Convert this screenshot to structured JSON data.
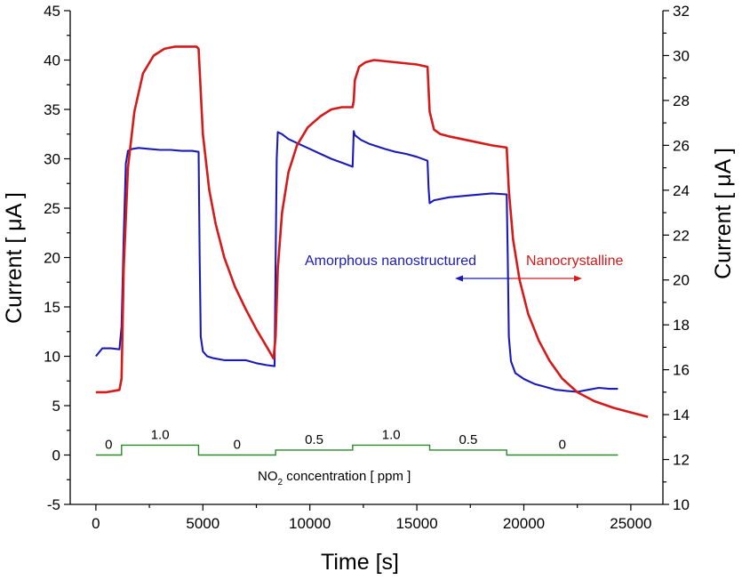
{
  "chart_data": {
    "type": "line",
    "xlabel": "Time  [s]",
    "ylabel_left": "Current  [ μA ]",
    "ylabel_right": "Current  [ μA ]",
    "xlim": [
      -1200,
      26500
    ],
    "ylim_left": [
      -5,
      45
    ],
    "ylim_right": [
      10,
      32
    ],
    "x_ticks": [
      0,
      5000,
      10000,
      15000,
      20000,
      25000
    ],
    "y_left_ticks": [
      -5,
      0,
      5,
      10,
      15,
      20,
      25,
      30,
      35,
      40,
      45
    ],
    "y_right_ticks": [
      10,
      12,
      14,
      16,
      18,
      20,
      22,
      24,
      26,
      28,
      30,
      32
    ],
    "grid": false,
    "series": [
      {
        "name": "Amorphous nanostructured",
        "axis": "left",
        "color": "#1a1ab8",
        "x": [
          0,
          300,
          700,
          1100,
          1200,
          1300,
          1400,
          1500,
          1700,
          2000,
          2500,
          3000,
          3500,
          4000,
          4500,
          4800,
          4850,
          4900,
          5000,
          5200,
          5500,
          6000,
          6500,
          7000,
          7500,
          8000,
          8350,
          8400,
          8450,
          8500,
          8700,
          9000,
          9500,
          10000,
          10500,
          11000,
          11500,
          12000,
          12050,
          12100,
          12400,
          12800,
          13500,
          14000,
          14500,
          15000,
          15500,
          15550,
          15600,
          15800,
          16500,
          17500,
          18500,
          19200,
          19250,
          19300,
          19400,
          19600,
          20000,
          20500,
          21000,
          21500,
          22000,
          22500,
          23000,
          23500,
          24000,
          24400
        ],
        "values": [
          10.0,
          10.8,
          10.8,
          10.7,
          13.0,
          22.0,
          29.5,
          30.8,
          31.0,
          31.1,
          31.0,
          30.9,
          30.9,
          30.8,
          30.8,
          30.7,
          20.0,
          12.0,
          10.5,
          10.0,
          9.8,
          9.6,
          9.6,
          9.6,
          9.3,
          9.1,
          9.0,
          20.0,
          30.0,
          32.7,
          32.5,
          32.0,
          31.5,
          31.0,
          30.5,
          30.0,
          29.6,
          29.2,
          32.8,
          32.4,
          31.9,
          31.5,
          31.0,
          30.7,
          30.5,
          30.2,
          29.8,
          27.0,
          25.5,
          25.8,
          26.1,
          26.3,
          26.5,
          26.4,
          20.0,
          12.0,
          9.5,
          8.3,
          7.7,
          7.2,
          6.9,
          6.6,
          6.5,
          6.4,
          6.6,
          6.8,
          6.7,
          6.7
        ]
      },
      {
        "name": "Nanocrystalline",
        "axis": "right",
        "color": "#d41a1a",
        "x": [
          0,
          500,
          1100,
          1200,
          1300,
          1500,
          1800,
          2200,
          2700,
          3200,
          3700,
          4200,
          4700,
          4800,
          5000,
          5300,
          5600,
          6000,
          6500,
          7000,
          7500,
          8000,
          8300,
          8400,
          8500,
          8700,
          9000,
          9400,
          9900,
          10500,
          11000,
          11500,
          12000,
          12050,
          12100,
          12300,
          12600,
          13000,
          14000,
          15000,
          15500,
          15550,
          15600,
          15800,
          16100,
          16500,
          17500,
          18500,
          19200,
          19300,
          19500,
          19800,
          20200,
          20700,
          21200,
          21800,
          22500,
          23300,
          24200,
          25000,
          25800
        ],
        "values": [
          15.0,
          15.0,
          15.1,
          15.6,
          20.5,
          25.0,
          27.5,
          29.2,
          30.0,
          30.3,
          30.4,
          30.4,
          30.4,
          30.3,
          26.5,
          24.0,
          22.5,
          21.0,
          19.7,
          18.7,
          17.8,
          17.0,
          16.5,
          17.5,
          20.5,
          23.0,
          24.8,
          26.0,
          26.8,
          27.3,
          27.6,
          27.7,
          27.7,
          28.0,
          28.9,
          29.5,
          29.7,
          29.8,
          29.7,
          29.6,
          29.5,
          28.5,
          27.5,
          26.7,
          26.5,
          26.4,
          26.2,
          26.0,
          25.9,
          24.0,
          21.8,
          20.0,
          18.5,
          17.3,
          16.4,
          15.6,
          15.0,
          14.6,
          14.3,
          14.1,
          13.9
        ]
      }
    ],
    "concentration_steps": {
      "label": "NO2 concentration  [ ppm ]",
      "color": "#2a8a2a",
      "segments": [
        {
          "start": 0,
          "end": 1200,
          "value": 0,
          "label": "0"
        },
        {
          "start": 1200,
          "end": 4800,
          "value": 1.0,
          "label": "1.0"
        },
        {
          "start": 4800,
          "end": 8400,
          "value": 0,
          "label": "0"
        },
        {
          "start": 8400,
          "end": 12000,
          "value": 0.5,
          "label": "0.5"
        },
        {
          "start": 12000,
          "end": 15600,
          "value": 1.0,
          "label": "1.0"
        },
        {
          "start": 15600,
          "end": 19200,
          "value": 0.5,
          "label": "0.5"
        },
        {
          "start": 19200,
          "end": 24400,
          "value": 0,
          "label": "0"
        }
      ]
    },
    "annotations": {
      "left_label": "Amorphous nanostructured",
      "right_label": "Nanocrystalline",
      "conc_prefix": "NO",
      "conc_sub": "2",
      "conc_suffix": " concentration  [ ppm ]"
    }
  }
}
